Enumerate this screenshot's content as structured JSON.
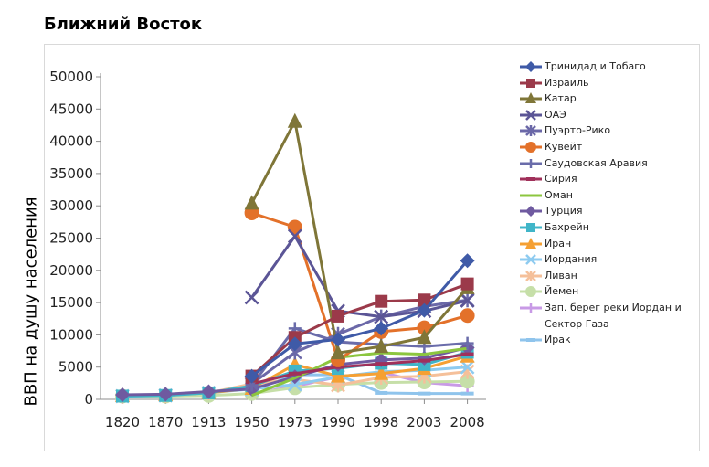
{
  "chart_data": {
    "type": "line",
    "title": "Ближний Восток",
    "xlabel": "",
    "ylabel": "ВВП на душу населения",
    "ylim": [
      0,
      50000
    ],
    "yticks": [
      0,
      5000,
      10000,
      15000,
      20000,
      25000,
      30000,
      35000,
      40000,
      45000,
      50000
    ],
    "categories": [
      "1820",
      "1870",
      "1913",
      "1950",
      "1973",
      "1990",
      "1998",
      "2003",
      "2008"
    ],
    "legend_position": "right",
    "grid": false,
    "series": [
      {
        "name": "Тринидад и Тобаго",
        "color": "#3f5aa7",
        "marker": "diamond",
        "values": [
          null,
          null,
          null,
          3600,
          8600,
          9300,
          11000,
          13800,
          21500
        ]
      },
      {
        "name": "Израиль",
        "color": "#9b3a4a",
        "marker": "square",
        "values": [
          null,
          null,
          null,
          3600,
          9600,
          12900,
          15200,
          15400,
          17900
        ]
      },
      {
        "name": "Катар",
        "color": "#7f7638",
        "marker": "triangle",
        "values": [
          null,
          null,
          null,
          30400,
          43100,
          7200,
          8200,
          9600,
          17300
        ]
      },
      {
        "name": "ОАЭ",
        "color": "#5b5596",
        "marker": "x",
        "values": [
          null,
          null,
          null,
          15800,
          25300,
          13700,
          12800,
          13700,
          15300
        ]
      },
      {
        "name": "Пуэрто-Рико",
        "color": "#6b68a8",
        "marker": "star",
        "values": [
          null,
          null,
          null,
          2400,
          7300,
          10100,
          12800,
          14400,
          15400
        ]
      },
      {
        "name": "Кувейт",
        "color": "#e3712a",
        "marker": "circle",
        "values": [
          null,
          null,
          null,
          28900,
          26700,
          6100,
          10500,
          11100,
          13000
        ]
      },
      {
        "name": "Саудовская Аравия",
        "color": "#6a6caa",
        "marker": "plus",
        "values": [
          null,
          null,
          null,
          2200,
          11000,
          8900,
          8500,
          8200,
          8700
        ]
      },
      {
        "name": "Сирия",
        "color": "#a0305a",
        "marker": "dash",
        "values": [
          null,
          null,
          null,
          2400,
          4000,
          5000,
          5500,
          6000,
          7000
        ]
      },
      {
        "name": "Оман",
        "color": "#8cc63f",
        "marker": "none",
        "values": [
          null,
          null,
          null,
          600,
          3300,
          6500,
          7200,
          7000,
          7900
        ]
      },
      {
        "name": "Турция",
        "color": "#6f5aa0",
        "marker": "diamond",
        "values": [
          700,
          800,
          1200,
          1600,
          3500,
          5400,
          6100,
          6400,
          8000
        ]
      },
      {
        "name": "Бахрейн",
        "color": "#40b5c8",
        "marker": "square",
        "values": [
          500,
          600,
          1000,
          2100,
          4400,
          4800,
          5600,
          5400,
          7300
        ]
      },
      {
        "name": "Иран",
        "color": "#f5a033",
        "marker": "triangle",
        "values": [
          600,
          700,
          1000,
          1700,
          5400,
          3600,
          4000,
          4800,
          6700
        ]
      },
      {
        "name": "Иордания",
        "color": "#8ecbf0",
        "marker": "x",
        "values": [
          500,
          600,
          1000,
          1600,
          2300,
          3500,
          4300,
          4500,
          5000
        ]
      },
      {
        "name": "Ливан",
        "color": "#f5c09a",
        "marker": "star",
        "values": [
          500,
          600,
          1000,
          2400,
          3100,
          2200,
          3400,
          3600,
          4300
        ]
      },
      {
        "name": "Йемен",
        "color": "#c6dfa8",
        "marker": "circle",
        "values": [
          500,
          500,
          600,
          900,
          1800,
          2300,
          2600,
          2700,
          2800
        ]
      },
      {
        "name": "Зап. берег реки Иордан и Сектор Газа",
        "color": "#c89ae6",
        "marker": "plus",
        "values": [
          null,
          null,
          null,
          900,
          2000,
          3500,
          4200,
          2600,
          2100
        ]
      },
      {
        "name": "Ирак",
        "color": "#8fc4ec",
        "marker": "dash",
        "values": [
          null,
          null,
          null,
          1400,
          3800,
          3800,
          1000,
          900,
          900
        ]
      }
    ]
  }
}
